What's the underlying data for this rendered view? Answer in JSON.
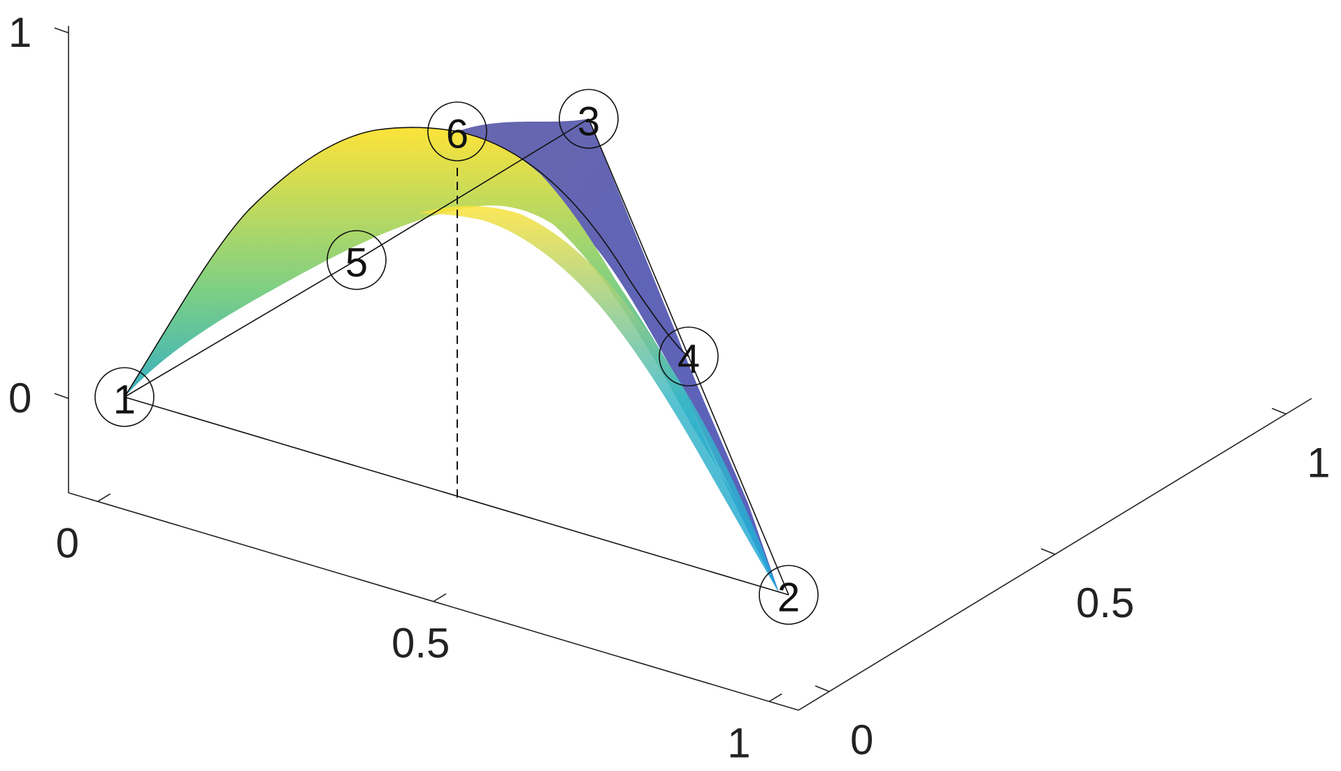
{
  "chart_data": {
    "type": "surface",
    "title": "",
    "xlabel": "",
    "ylabel": "",
    "zlabel": "",
    "xlim": [
      0,
      1
    ],
    "ylim": [
      0,
      1
    ],
    "zlim": [
      -0.25,
      1
    ],
    "x_ticks": [
      "0",
      "0.5",
      "1"
    ],
    "y_ticks": [
      "0",
      "0.5",
      "1"
    ],
    "z_ticks": [
      "0",
      "1"
    ],
    "grid": false,
    "colormap": "parula",
    "nodes": [
      {
        "id": "1",
        "x": 0,
        "y": 0,
        "z": 0
      },
      {
        "id": "2",
        "x": 1,
        "y": 0,
        "z": 0
      },
      {
        "id": "3",
        "x": 1,
        "y": 0.5,
        "z": 0.75
      },
      {
        "id": "4",
        "x": 1,
        "y": 0.25,
        "z": 0.375
      },
      {
        "id": "5",
        "x": 0.5,
        "y": 0.25,
        "z": 0.375
      },
      {
        "id": "6",
        "x": 0.5,
        "y": 0,
        "z": 0.75
      }
    ],
    "dashed_guide": {
      "from": {
        "x": 0.5,
        "y": 0,
        "z": 0
      },
      "to": {
        "x": 0.5,
        "y": 0,
        "z": 0.75
      }
    }
  }
}
